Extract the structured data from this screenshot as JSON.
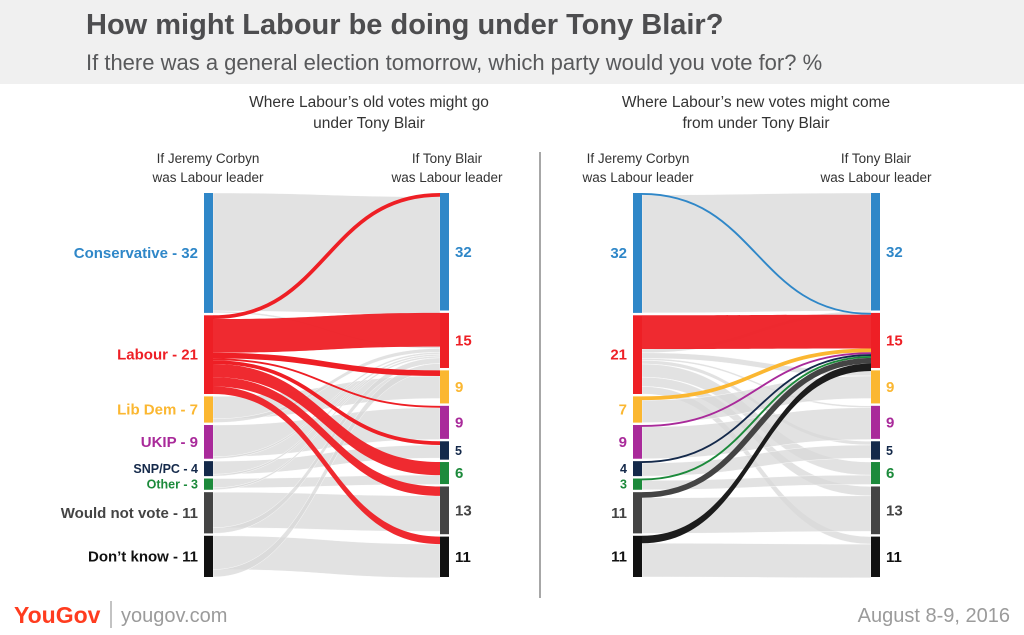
{
  "header": {
    "title": "How might Labour be doing under Tony Blair?",
    "subtitle": "If there was a general election tomorrow, which party would you vote for? %"
  },
  "footer": {
    "logo": "YouGov",
    "site": "yougov.com",
    "date": "August 8-9, 2016"
  },
  "colors": {
    "Conservative": "#2f87c8",
    "Labour": "#ee1f25",
    "Lib Dem": "#fbb731",
    "UKIP": "#a92a9a",
    "SNP/PC": "#14294a",
    "Other": "#1c8a3b",
    "Would not vote": "#444444",
    "Don't know": "#111111",
    "flow": "#d8d8d8",
    "header_bg": "#f0f0f0"
  },
  "chart_data": [
    {
      "type": "sankey",
      "title": "Where Labour’s old votes might go under Tony Blair",
      "left_header": [
        "If Jeremy Corbyn",
        "was Labour leader"
      ],
      "right_header": [
        "If Tony Blair",
        "was Labour leader"
      ],
      "left_nodes": [
        {
          "party": "Conservative",
          "value": 32,
          "label": "Conservative - 32"
        },
        {
          "party": "Labour",
          "value": 21,
          "label": "Labour - 21"
        },
        {
          "party": "Lib Dem",
          "value": 7,
          "label": "Lib Dem - 7"
        },
        {
          "party": "UKIP",
          "value": 9,
          "label": "UKIP - 9"
        },
        {
          "party": "SNP/PC",
          "value": 4,
          "label": "SNP/PC - 4"
        },
        {
          "party": "Other",
          "value": 3,
          "label": "Other - 3"
        },
        {
          "party": "Would not vote",
          "value": 11,
          "label": "Would not vote - 11"
        },
        {
          "party": "Don't know",
          "value": 11,
          "label": "Don’t know - 11"
        }
      ],
      "right_nodes": [
        {
          "party": "Conservative",
          "value": 32,
          "label": "32"
        },
        {
          "party": "Labour",
          "value": 15,
          "label": "15"
        },
        {
          "party": "Lib Dem",
          "value": 9,
          "label": "9"
        },
        {
          "party": "UKIP",
          "value": 9,
          "label": "9"
        },
        {
          "party": "SNP/PC",
          "value": 5,
          "label": "5"
        },
        {
          "party": "Other",
          "value": 6,
          "label": "6"
        },
        {
          "party": "Would not vote",
          "value": 13,
          "label": "13"
        },
        {
          "party": "Don't know",
          "value": 11,
          "label": "11"
        }
      ],
      "highlight": "Labour",
      "highlight_side": "source",
      "flows": [
        {
          "from": "Labour",
          "to": "Conservative",
          "value": 1
        },
        {
          "from": "Labour",
          "to": "Labour",
          "value": 9
        },
        {
          "from": "Labour",
          "to": "Lib Dem",
          "value": 1.5
        },
        {
          "from": "Labour",
          "to": "UKIP",
          "value": 0.5
        },
        {
          "from": "Labour",
          "to": "SNP/PC",
          "value": 1
        },
        {
          "from": "Labour",
          "to": "Other",
          "value": 3.5
        },
        {
          "from": "Labour",
          "to": "Would not vote",
          "value": 2.5
        },
        {
          "from": "Labour",
          "to": "Don't know",
          "value": 2
        },
        {
          "from": "Conservative",
          "to": "Conservative",
          "value": 31.5
        },
        {
          "from": "Conservative",
          "to": "Labour",
          "value": 0.5
        },
        {
          "from": "Lib Dem",
          "to": "Lib Dem",
          "value": 6
        },
        {
          "from": "Lib Dem",
          "to": "Labour",
          "value": 1
        },
        {
          "from": "UKIP",
          "to": "UKIP",
          "value": 8.5
        },
        {
          "from": "UKIP",
          "to": "Labour",
          "value": 0.5
        },
        {
          "from": "SNP/PC",
          "to": "SNP/PC",
          "value": 3.5
        },
        {
          "from": "SNP/PC",
          "to": "Labour",
          "value": 0.5
        },
        {
          "from": "Other",
          "to": "Other",
          "value": 2.5
        },
        {
          "from": "Other",
          "to": "Labour",
          "value": 0.5
        },
        {
          "from": "Would not vote",
          "to": "Would not vote",
          "value": 9.5
        },
        {
          "from": "Would not vote",
          "to": "Labour",
          "value": 1.5
        },
        {
          "from": "Don't know",
          "to": "Don't know",
          "value": 9
        },
        {
          "from": "Don't know",
          "to": "Labour",
          "value": 2
        }
      ]
    },
    {
      "type": "sankey",
      "title": "Where Labour’s new votes might come from under Tony Blair",
      "left_header": [
        "If Jeremy Corbyn",
        "was Labour leader"
      ],
      "right_header": [
        "If Tony Blair",
        "was Labour leader"
      ],
      "left_nodes": [
        {
          "party": "Conservative",
          "value": 32,
          "label": "32"
        },
        {
          "party": "Labour",
          "value": 21,
          "label": "21"
        },
        {
          "party": "Lib Dem",
          "value": 7,
          "label": "7"
        },
        {
          "party": "UKIP",
          "value": 9,
          "label": "9"
        },
        {
          "party": "SNP/PC",
          "value": 4,
          "label": "4"
        },
        {
          "party": "Other",
          "value": 3,
          "label": "3"
        },
        {
          "party": "Would not vote",
          "value": 11,
          "label": "11"
        },
        {
          "party": "Don't know",
          "value": 11,
          "label": "11"
        }
      ],
      "right_nodes": [
        {
          "party": "Conservative",
          "value": 32,
          "label": "32"
        },
        {
          "party": "Labour",
          "value": 15,
          "label": "15"
        },
        {
          "party": "Lib Dem",
          "value": 9,
          "label": "9"
        },
        {
          "party": "UKIP",
          "value": 9,
          "label": "9"
        },
        {
          "party": "SNP/PC",
          "value": 5,
          "label": "5"
        },
        {
          "party": "Other",
          "value": 6,
          "label": "6"
        },
        {
          "party": "Would not vote",
          "value": 13,
          "label": "13"
        },
        {
          "party": "Don't know",
          "value": 11,
          "label": "11"
        }
      ],
      "highlight": "Labour",
      "highlight_side": "target",
      "flows": [
        {
          "from": "Conservative",
          "to": "Labour",
          "value": 0.5
        },
        {
          "from": "Labour",
          "to": "Labour",
          "value": 9
        },
        {
          "from": "Lib Dem",
          "to": "Labour",
          "value": 1
        },
        {
          "from": "UKIP",
          "to": "Labour",
          "value": 0.5
        },
        {
          "from": "SNP/PC",
          "to": "Labour",
          "value": 0.5
        },
        {
          "from": "Other",
          "to": "Labour",
          "value": 0.5
        },
        {
          "from": "Would not vote",
          "to": "Labour",
          "value": 1.5
        },
        {
          "from": "Don't know",
          "to": "Labour",
          "value": 2
        },
        {
          "from": "Conservative",
          "to": "Conservative",
          "value": 31.5
        },
        {
          "from": "Labour",
          "to": "Conservative",
          "value": 1
        },
        {
          "from": "Labour",
          "to": "Lib Dem",
          "value": 1.5
        },
        {
          "from": "Labour",
          "to": "UKIP",
          "value": 0.5
        },
        {
          "from": "Labour",
          "to": "SNP/PC",
          "value": 1
        },
        {
          "from": "Labour",
          "to": "Other",
          "value": 3.5
        },
        {
          "from": "Labour",
          "to": "Would not vote",
          "value": 2.5
        },
        {
          "from": "Labour",
          "to": "Don't know",
          "value": 2
        },
        {
          "from": "Lib Dem",
          "to": "Lib Dem",
          "value": 6
        },
        {
          "from": "UKIP",
          "to": "UKIP",
          "value": 8.5
        },
        {
          "from": "SNP/PC",
          "to": "SNP/PC",
          "value": 3.5
        },
        {
          "from": "Other",
          "to": "Other",
          "value": 2.5
        },
        {
          "from": "Would not vote",
          "to": "Would not vote",
          "value": 9.5
        },
        {
          "from": "Don't know",
          "to": "Don't know",
          "value": 9
        }
      ]
    }
  ]
}
